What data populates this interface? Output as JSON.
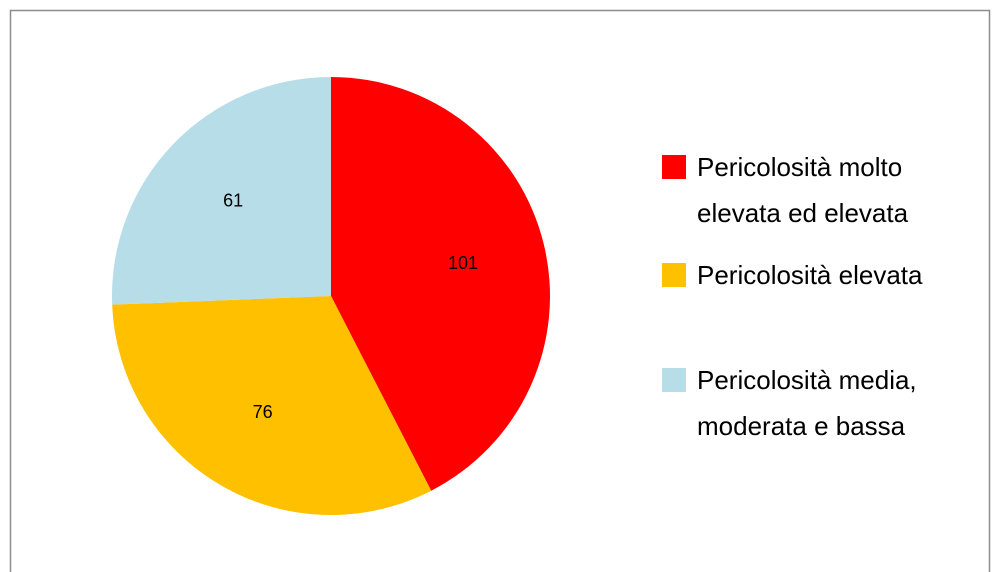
{
  "chart_data": {
    "type": "pie",
    "categories": [
      "Pericolosità molto elevata ed elevata",
      "Pericolosità elevata",
      "Pericolosità media, moderata e bassa"
    ],
    "values": [
      101,
      76,
      61
    ],
    "colors": [
      "#ff0000",
      "#ffc000",
      "#b7dde8"
    ],
    "legend": "right"
  }
}
